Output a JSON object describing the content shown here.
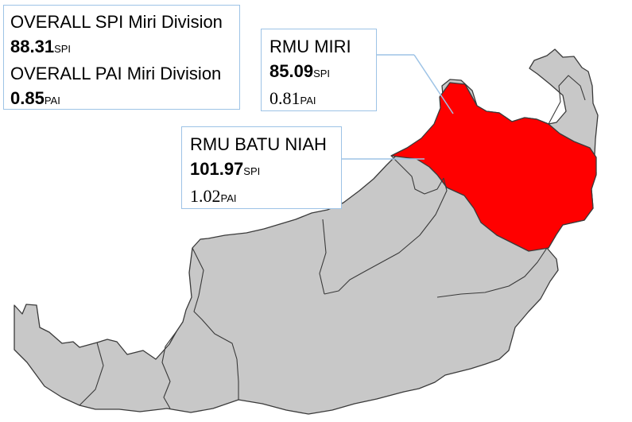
{
  "colors": {
    "land": "#c8c8c8",
    "highlight": "#ff0000",
    "border": "#3a3a3a",
    "callout_border": "#9dc3e6"
  },
  "division_box": {
    "spi_title": "OVERALL SPI Miri Division",
    "spi_value": "88.31",
    "spi_unit": "SPI",
    "pai_title": "OVERALL PAI Miri Division",
    "pai_value": "0.85",
    "pai_unit": "PAI"
  },
  "rmu_miri": {
    "title": "RMU MIRI",
    "spi_value": "85.09",
    "spi_unit": "SPI",
    "pai_value": "0.81",
    "pai_unit": "PAI"
  },
  "rmu_batu_niah": {
    "title": "RMU BATU NIAH",
    "spi_value": "101.97",
    "spi_unit": "SPI",
    "pai_value": "1.02",
    "pai_unit": "PAI"
  }
}
